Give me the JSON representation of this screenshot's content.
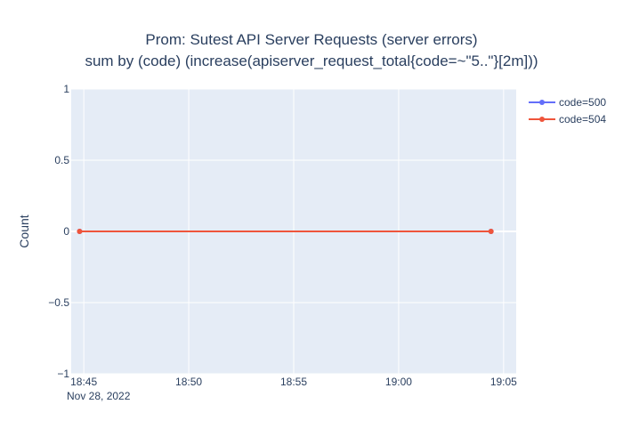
{
  "chart_data": {
    "type": "line",
    "title": "Prom: Sutest API Server Requests (server errors)",
    "subtitle": "sum by (code) (increase(apiserver_request_total{code=~\"5..\"}[2m]))",
    "xlabel": "",
    "ylabel": "Count",
    "x_date_label": "Nov 28, 2022",
    "x_ticks": [
      "18:45",
      "18:50",
      "18:55",
      "19:00",
      "19:05"
    ],
    "x_tick_minutes": [
      1125,
      1130,
      1135,
      1140,
      1145
    ],
    "xlim_minutes": [
      1124.4,
      1145.6
    ],
    "y_ticks": [
      "1",
      "0.5",
      "0",
      "−0.5",
      "−1"
    ],
    "y_tick_values": [
      1,
      0.5,
      0,
      -0.5,
      -1
    ],
    "ylim": [
      -1,
      1
    ],
    "grid": true,
    "legend_position": "top-right",
    "series": [
      {
        "name": "code=500",
        "color": "#636efa",
        "x_minutes": [
          1124.8,
          1144.4
        ],
        "values": [
          0,
          0
        ]
      },
      {
        "name": "code=504",
        "color": "#ef553b",
        "x_minutes": [
          1124.8,
          1144.4
        ],
        "values": [
          0,
          0
        ]
      }
    ],
    "plot_bgcolor": "#e5ecf6",
    "grid_color": "#ffffff"
  }
}
